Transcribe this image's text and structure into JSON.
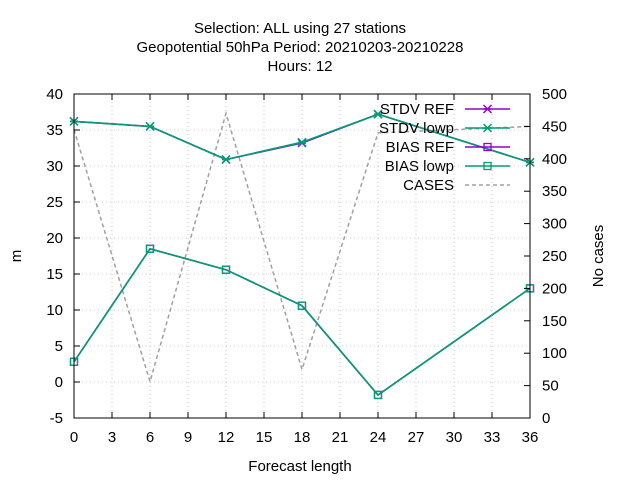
{
  "chart_data": {
    "type": "line",
    "title_lines": [
      "Selection: ALL using    27 stations",
      "Geopotential 50hPa   Period: 20210203-20210228",
      "Hours:  12"
    ],
    "xlabel": "Forecast length",
    "ylabel": "m",
    "y2label": "No cases",
    "xlim": [
      0,
      36
    ],
    "ylim": [
      -5,
      40
    ],
    "y2lim": [
      0,
      500
    ],
    "x_ticks": [
      0,
      3,
      6,
      9,
      12,
      15,
      18,
      21,
      24,
      27,
      30,
      33,
      36
    ],
    "y_ticks": [
      -5,
      0,
      5,
      10,
      15,
      20,
      25,
      30,
      35,
      40
    ],
    "y2_ticks": [
      0,
      50,
      100,
      150,
      200,
      250,
      300,
      350,
      400,
      450,
      500
    ],
    "grid": true,
    "legend_position": "top-right",
    "x": [
      0,
      6,
      12,
      18,
      24,
      36
    ],
    "series": [
      {
        "name": "STDV REF",
        "values": [
          36.2,
          35.5,
          30.9,
          33.2,
          37.2,
          30.5
        ],
        "axis": "y1",
        "color": "#9400d3",
        "marker": "star",
        "dash": false
      },
      {
        "name": "STDV lowp",
        "values": [
          36.2,
          35.5,
          30.9,
          33.3,
          37.2,
          30.5
        ],
        "axis": "y1",
        "color": "#009e73",
        "marker": "star",
        "dash": false
      },
      {
        "name": "BIAS REF",
        "values": [
          2.8,
          18.5,
          15.6,
          10.6,
          -1.8,
          13.0
        ],
        "axis": "y1",
        "color": "#9400d3",
        "marker": "square",
        "dash": false
      },
      {
        "name": "BIAS lowp",
        "values": [
          2.8,
          18.5,
          15.6,
          10.6,
          -1.8,
          13.0
        ],
        "axis": "y1",
        "color": "#009e73",
        "marker": "square",
        "dash": false
      },
      {
        "name": "CASES",
        "values": [
          445,
          56,
          470,
          75,
          440,
          450
        ],
        "axis": "y2",
        "color": "#a0a0a0",
        "marker": "none",
        "dash": true
      }
    ]
  }
}
